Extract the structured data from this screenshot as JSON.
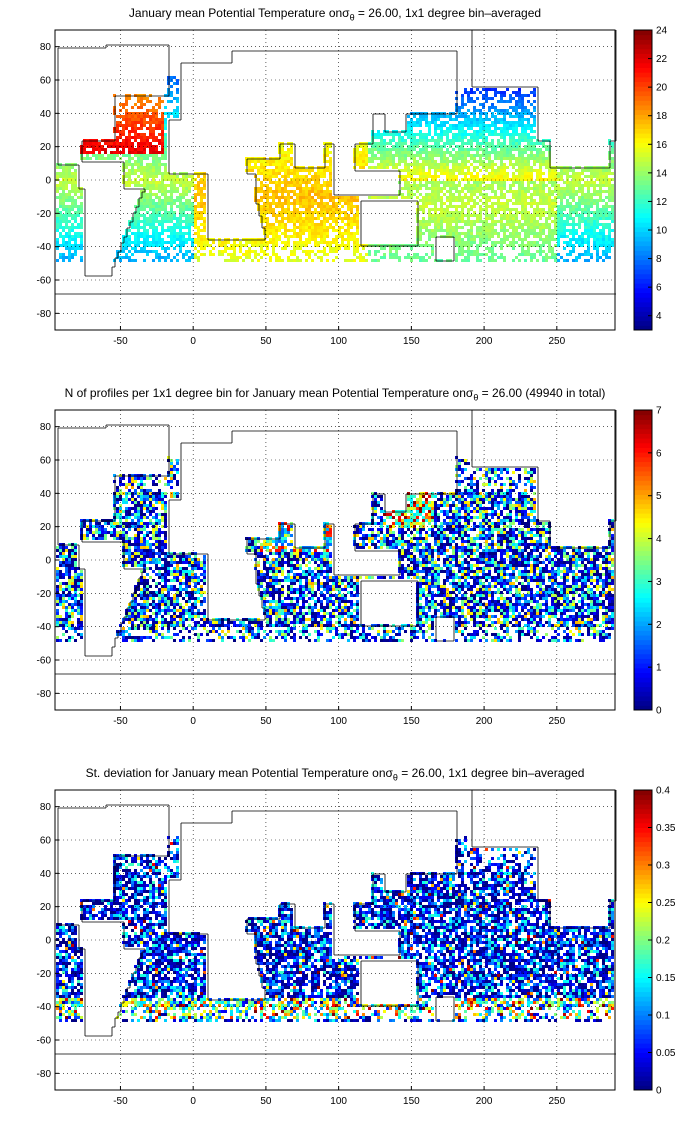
{
  "chart_data": [
    {
      "type": "heatmap",
      "title_prefix": "January mean Potential Temperature on",
      "title_symbol": "σ",
      "title_sub": "θ",
      "title_suffix": " = 26.00, 1x1 degree bin–averaged",
      "xlim": [
        -95,
        290
      ],
      "ylim": [
        -90,
        90
      ],
      "xticks": [
        -50,
        0,
        50,
        100,
        150,
        200,
        250
      ],
      "yticks": [
        -80,
        -60,
        -40,
        -20,
        0,
        20,
        40,
        60,
        80
      ],
      "grid": true,
      "colormap": "jet",
      "clim": [
        3,
        24
      ],
      "colorbar_ticks": [
        4,
        6,
        8,
        10,
        12,
        14,
        16,
        18,
        20,
        22,
        24
      ],
      "field": "potential_temperature"
    },
    {
      "type": "heatmap",
      "title_prefix": "N of profiles per 1x1 degree bin for January mean Potential Temperature on",
      "title_symbol": "σ",
      "title_sub": "θ",
      "title_suffix": " = 26.00 (49940 in total)",
      "xlim": [
        -95,
        290
      ],
      "ylim": [
        -90,
        90
      ],
      "xticks": [
        -50,
        0,
        50,
        100,
        150,
        200,
        250
      ],
      "yticks": [
        -80,
        -60,
        -40,
        -20,
        0,
        20,
        40,
        60,
        80
      ],
      "grid": true,
      "colormap": "jet",
      "clim": [
        0,
        7
      ],
      "colorbar_ticks": [
        0,
        1,
        2,
        3,
        4,
        5,
        6,
        7
      ],
      "total_profiles": 49940,
      "field": "profile_count"
    },
    {
      "type": "heatmap",
      "title_prefix": "St. deviation for January mean Potential Temperature on",
      "title_symbol": "σ",
      "title_sub": "θ",
      "title_suffix": " = 26.00, 1x1 degree bin–averaged",
      "xlim": [
        -95,
        290
      ],
      "ylim": [
        -90,
        90
      ],
      "xticks": [
        -50,
        0,
        50,
        100,
        150,
        200,
        250
      ],
      "yticks": [
        -80,
        -60,
        -40,
        -20,
        0,
        20,
        40,
        60,
        80
      ],
      "grid": true,
      "colormap": "jet",
      "clim": [
        0,
        0.4
      ],
      "colorbar_ticks": [
        0,
        0.05,
        0.1,
        0.15,
        0.2,
        0.25,
        0.3,
        0.35,
        0.4
      ],
      "field": "standard_deviation"
    }
  ]
}
